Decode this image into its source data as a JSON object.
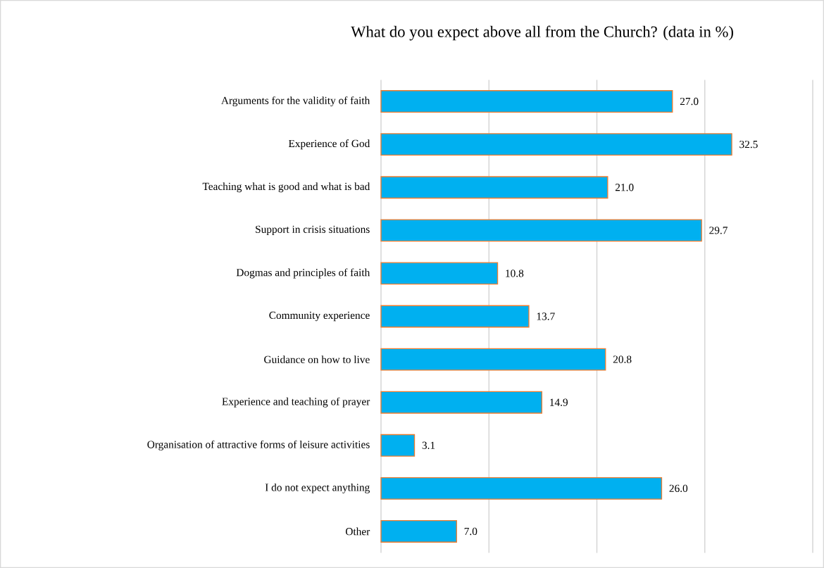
{
  "chart_data": {
    "type": "bar",
    "orientation": "horizontal",
    "title": "What do you expect above all from the Church? (data in %)",
    "categories": [
      "Arguments for the validity of faith",
      "Experience of God",
      "Teaching what is good and what is bad",
      "Support in crisis situations",
      "Dogmas and principles of faith",
      "Community experience",
      "Guidance on how to live",
      "Experience and teaching of prayer",
      "Organisation of attractive forms of leisure activities",
      "I do not expect anything",
      "Other"
    ],
    "values": [
      27.0,
      32.5,
      21.0,
      29.7,
      10.8,
      13.7,
      20.8,
      14.9,
      3.1,
      26.0,
      7.0
    ],
    "color": "#00b0f0",
    "xlim": [
      0,
      40
    ],
    "xticks": [
      {
        "value": 0,
        "label": null
      },
      {
        "value": 10,
        "label": null
      },
      {
        "value": 20,
        "label": null
      },
      {
        "value": 30,
        "label": null
      },
      {
        "value": 40,
        "label": null
      }
    ],
    "value_labels": [
      "27.0",
      "32.5",
      "21.0",
      "29.7",
      "10.8",
      "13.7",
      "20.8",
      "14.9",
      "3.1",
      "26.0",
      "7.0"
    ],
    "tick_labels": "y",
    "grid": "x"
  }
}
